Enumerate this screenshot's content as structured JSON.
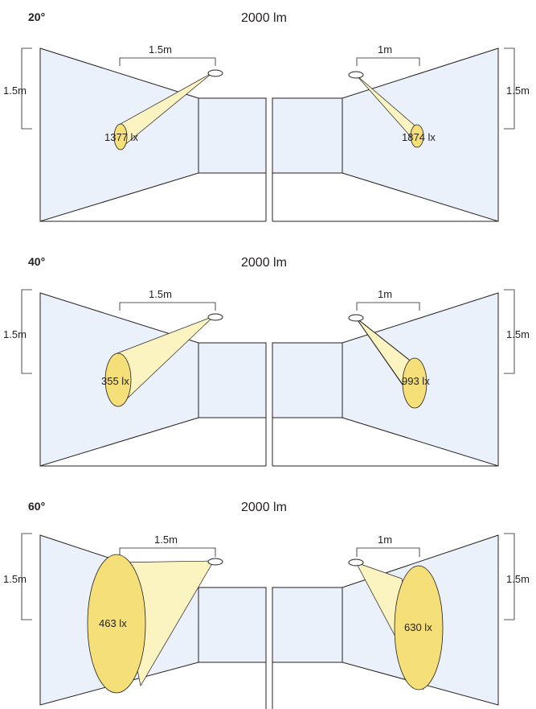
{
  "colors": {
    "wall": "#eaf1fa",
    "beam": "#fbf4c0",
    "spot": "#f5df78",
    "line": "#231f20"
  },
  "icons": {
    "luminaire": "luminaire-icon"
  },
  "panels": [
    {
      "angle": "20°",
      "flux": "2000 lm",
      "left": {
        "distance": "1.5m",
        "height": "1.5m",
        "illuminance": "1377 lx"
      },
      "right": {
        "distance": "1m",
        "height": "1.5m",
        "illuminance": "1874 lx"
      }
    },
    {
      "angle": "40°",
      "flux": "2000 lm",
      "left": {
        "distance": "1.5m",
        "height": "1.5m",
        "illuminance": "355 lx"
      },
      "right": {
        "distance": "1m",
        "height": "1.5m",
        "illuminance": "993 lx"
      }
    },
    {
      "angle": "60°",
      "flux": "2000 lm",
      "left": {
        "distance": "1.5m",
        "height": "1.5m",
        "illuminance": "463 lx"
      },
      "right": {
        "distance": "1m",
        "height": "1.5m",
        "illuminance": "630 lx"
      }
    }
  ]
}
